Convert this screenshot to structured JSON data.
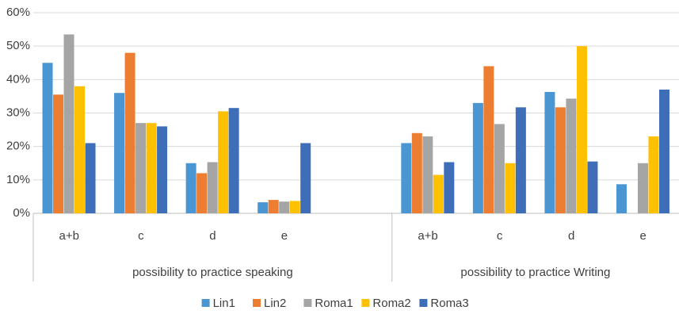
{
  "chart_data": {
    "type": "bar",
    "groups": [
      {
        "name": "possibility to practice speaking",
        "categories": [
          "a+b",
          "c",
          "d",
          "e",
          null
        ]
      },
      {
        "name": "possibility to practice Writing",
        "categories": [
          "a+b",
          "c",
          "d",
          "e"
        ]
      }
    ],
    "series": [
      {
        "name": "Lin1",
        "color": "#4a96d2",
        "values": [
          45,
          36,
          15,
          3.3,
          null,
          21,
          33,
          36.3,
          8.7
        ]
      },
      {
        "name": "Lin2",
        "color": "#ed7d31",
        "values": [
          35.5,
          48,
          12,
          4,
          null,
          24,
          44,
          31.7,
          null
        ]
      },
      {
        "name": "Roma1",
        "color": "#a5a5a5",
        "values": [
          53.5,
          27,
          15.3,
          3.5,
          null,
          23,
          26.7,
          34.3,
          15
        ]
      },
      {
        "name": "Roma2",
        "color": "#ffc000",
        "values": [
          38,
          27,
          30.5,
          3.7,
          null,
          11.5,
          15,
          50,
          23
        ]
      },
      {
        "name": "Roma3",
        "color": "#3f6eb8",
        "values": [
          21,
          26,
          31.5,
          21,
          null,
          15.3,
          31.7,
          15.5,
          37
        ]
      }
    ],
    "ylim": [
      0,
      60
    ],
    "yticks": [
      {
        "value": 0,
        "label": "0%"
      },
      {
        "value": 10,
        "label": "10%"
      },
      {
        "value": 20,
        "label": "20%"
      },
      {
        "value": 30,
        "label": "30%"
      },
      {
        "value": 40,
        "label": "40%"
      },
      {
        "value": 50,
        "label": "50%"
      },
      {
        "value": 60,
        "label": "60%"
      }
    ],
    "grid": true,
    "legend": "bottom"
  }
}
